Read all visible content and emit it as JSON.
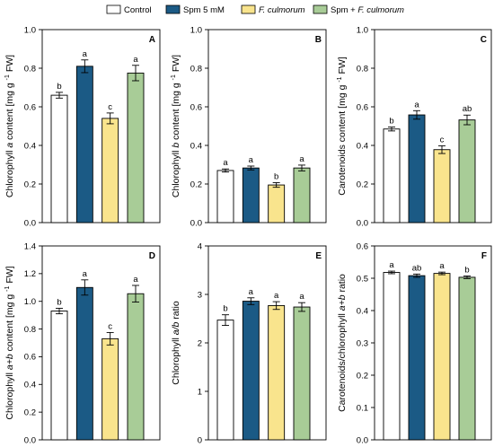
{
  "legend": [
    {
      "label": "Control",
      "color": "#ffffff",
      "italic": false
    },
    {
      "label": "Spm 5 mM",
      "color": "#1b5a85",
      "italic": false
    },
    {
      "label": "F. culmorum",
      "color": "#f9e48d",
      "italic": true
    },
    {
      "label": "Spm + F. culmorum",
      "color": "#a8cc97",
      "italic": false,
      "italicPart": "F. culmorum"
    }
  ],
  "chart_data": [
    {
      "type": "bar",
      "panel": "A",
      "ylabel": "Chlorophyll a content [mg g⁻¹ FW]",
      "ylim": [
        0,
        1.0
      ],
      "ticks": [
        0.0,
        0.2,
        0.4,
        0.6,
        0.8,
        1.0
      ],
      "decimals": 1,
      "categories": [
        "Control",
        "Spm 5 mM",
        "F. culmorum",
        "Spm + F. culmorum"
      ],
      "values": [
        0.66,
        0.81,
        0.54,
        0.775
      ],
      "errors": [
        0.015,
        0.033,
        0.028,
        0.04
      ],
      "letters": [
        "b",
        "a",
        "c",
        "a"
      ]
    },
    {
      "type": "bar",
      "panel": "B",
      "ylabel": "Chlorophyll b content [mg g⁻¹ FW]",
      "ylim": [
        0,
        1.0
      ],
      "ticks": [
        0.0,
        0.2,
        0.4,
        0.6,
        0.8,
        1.0
      ],
      "decimals": 1,
      "categories": [
        "Control",
        "Spm 5 mM",
        "F. culmorum",
        "Spm + F. culmorum"
      ],
      "values": [
        0.27,
        0.283,
        0.195,
        0.283
      ],
      "errors": [
        0.008,
        0.01,
        0.012,
        0.015
      ],
      "letters": [
        "a",
        "a",
        "b",
        "a"
      ]
    },
    {
      "type": "bar",
      "panel": "C",
      "ylabel": "Carotenoids content [mg g⁻¹ FW]",
      "ylim": [
        0,
        1.0
      ],
      "ticks": [
        0.0,
        0.2,
        0.4,
        0.6,
        0.8,
        1.0
      ],
      "decimals": 1,
      "categories": [
        "Control",
        "Spm 5 mM",
        "F. culmorum",
        "Spm + F. culmorum"
      ],
      "values": [
        0.485,
        0.558,
        0.378,
        0.532
      ],
      "errors": [
        0.01,
        0.022,
        0.02,
        0.025
      ],
      "letters": [
        "b",
        "a",
        "c",
        "ab"
      ]
    },
    {
      "type": "bar",
      "panel": "D",
      "ylabel": "Chlorophyll a+b content [mg g⁻¹ FW]",
      "ylim": [
        0,
        1.4
      ],
      "ticks": [
        0.0,
        0.2,
        0.4,
        0.6,
        0.8,
        1.0,
        1.2,
        1.4
      ],
      "decimals": 1,
      "categories": [
        "Control",
        "Spm 5 mM",
        "F. culmorum",
        "Spm + F. culmorum"
      ],
      "values": [
        0.93,
        1.1,
        0.73,
        1.055
      ],
      "errors": [
        0.02,
        0.055,
        0.045,
        0.06
      ],
      "letters": [
        "b",
        "a",
        "c",
        "a"
      ]
    },
    {
      "type": "bar",
      "panel": "E",
      "ylabel": "Chlorophyll a/b ratio",
      "ylim": [
        0,
        4
      ],
      "ticks": [
        0,
        1,
        2,
        3,
        4
      ],
      "decimals": 0,
      "categories": [
        "Control",
        "Spm 5 mM",
        "F. culmorum",
        "Spm + F. culmorum"
      ],
      "values": [
        2.47,
        2.86,
        2.77,
        2.74
      ],
      "errors": [
        0.11,
        0.07,
        0.08,
        0.09
      ],
      "letters": [
        "b",
        "a",
        "a",
        "a"
      ]
    },
    {
      "type": "bar",
      "panel": "F",
      "ylabel": "Carotenoids/chlorophyll a+b ratio",
      "ylim": [
        0,
        0.6
      ],
      "ticks": [
        0.0,
        0.1,
        0.2,
        0.3,
        0.4,
        0.5,
        0.6
      ],
      "decimals": 1,
      "categories": [
        "Control",
        "Spm 5 mM",
        "F. culmorum",
        "Spm + F. culmorum"
      ],
      "values": [
        0.518,
        0.508,
        0.515,
        0.503
      ],
      "errors": [
        0.004,
        0.005,
        0.004,
        0.004
      ],
      "letters": [
        "a",
        "ab",
        "a",
        "b"
      ]
    }
  ]
}
